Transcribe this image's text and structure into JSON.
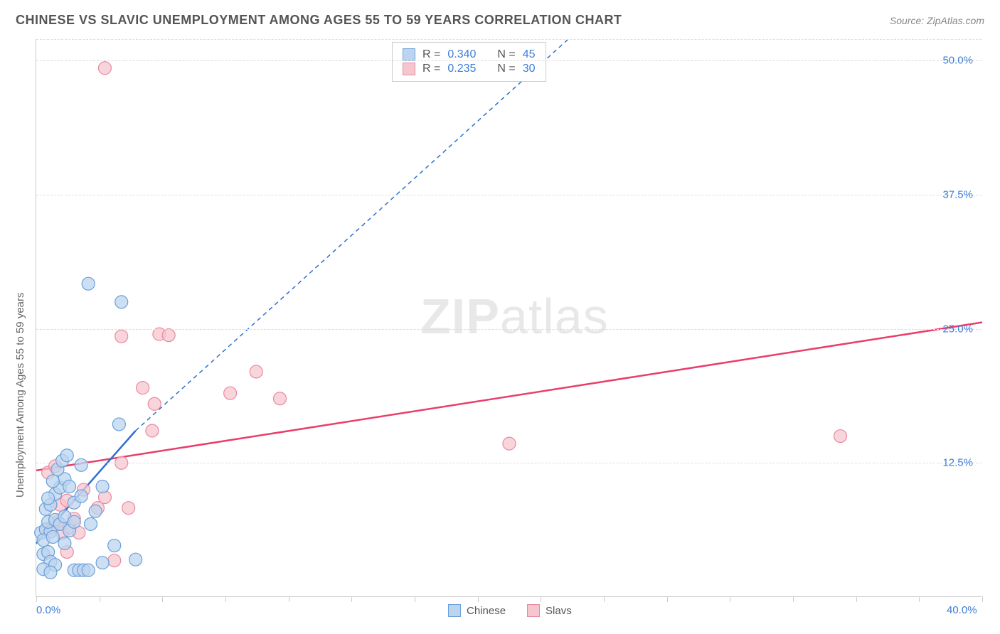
{
  "title": "CHINESE VS SLAVIC UNEMPLOYMENT AMONG AGES 55 TO 59 YEARS CORRELATION CHART",
  "source": "Source: ZipAtlas.com",
  "ylabel": "Unemployment Among Ages 55 to 59 years",
  "watermark_a": "ZIP",
  "watermark_b": "atlas",
  "chart": {
    "type": "scatter",
    "xlim": [
      0,
      40
    ],
    "ylim": [
      0,
      52
    ],
    "x_ticks": [
      0,
      2.67,
      5.33,
      8,
      10.67,
      13.33,
      16,
      18.67,
      21.33,
      24,
      26.67,
      29.33,
      32,
      34.67,
      37.33,
      40
    ],
    "x_tick_labels": {
      "0": "0.0%",
      "40": "40.0%"
    },
    "y_gridlines": [
      12.5,
      25.0,
      37.5,
      50.0,
      52.0
    ],
    "y_tick_labels": {
      "12.5": "12.5%",
      "25.0": "25.0%",
      "37.5": "37.5%",
      "50.0": "50.0%"
    },
    "grid_color": "#dddddd",
    "axis_color": "#cccccc",
    "tick_label_color": "#3b7dd8",
    "series": {
      "chinese": {
        "label": "Chinese",
        "fill": "#bcd4ee",
        "stroke": "#6aa0db",
        "marker_radius": 9,
        "fill_opacity": 0.75,
        "trend": {
          "x1": 0.0,
          "y1": 5.0,
          "x2": 4.2,
          "y2": 15.5,
          "x2_ext": 22.5,
          "y2_ext": 52.0,
          "color": "#2f6fd0",
          "width": 2.5,
          "dash": "6,5"
        },
        "points": [
          [
            0.2,
            6.0
          ],
          [
            0.4,
            6.3
          ],
          [
            0.6,
            6.1
          ],
          [
            0.5,
            7.0
          ],
          [
            0.8,
            7.2
          ],
          [
            0.3,
            5.3
          ],
          [
            0.7,
            5.6
          ],
          [
            1.0,
            6.8
          ],
          [
            1.2,
            7.5
          ],
          [
            0.4,
            8.2
          ],
          [
            0.6,
            8.6
          ],
          [
            0.8,
            9.6
          ],
          [
            1.0,
            10.2
          ],
          [
            1.2,
            11.0
          ],
          [
            1.4,
            10.3
          ],
          [
            0.9,
            11.9
          ],
          [
            1.1,
            12.7
          ],
          [
            1.3,
            13.2
          ],
          [
            0.3,
            4.0
          ],
          [
            0.5,
            4.2
          ],
          [
            0.6,
            3.3
          ],
          [
            0.8,
            3.0
          ],
          [
            1.6,
            2.5
          ],
          [
            1.8,
            2.5
          ],
          [
            2.0,
            2.5
          ],
          [
            2.2,
            2.5
          ],
          [
            2.8,
            3.2
          ],
          [
            3.3,
            4.8
          ],
          [
            4.2,
            3.5
          ],
          [
            1.6,
            8.8
          ],
          [
            1.9,
            9.4
          ],
          [
            2.3,
            6.8
          ],
          [
            2.5,
            8.0
          ],
          [
            2.8,
            10.3
          ],
          [
            3.5,
            16.1
          ],
          [
            0.3,
            2.6
          ],
          [
            0.6,
            2.3
          ],
          [
            1.2,
            5.0
          ],
          [
            1.4,
            6.2
          ],
          [
            1.6,
            7.0
          ],
          [
            2.2,
            29.2
          ],
          [
            3.6,
            27.5
          ],
          [
            0.7,
            10.8
          ],
          [
            1.9,
            12.3
          ],
          [
            0.5,
            9.2
          ]
        ]
      },
      "slavs": {
        "label": "Slavs",
        "fill": "#f6c6cf",
        "stroke": "#e88aa0",
        "marker_radius": 9,
        "fill_opacity": 0.75,
        "trend": {
          "x1": 0.0,
          "y1": 11.8,
          "x2": 40.0,
          "y2": 25.6,
          "color": "#e83e6b",
          "width": 2.5,
          "dash": "none"
        },
        "points": [
          [
            0.4,
            6.3
          ],
          [
            0.7,
            6.5
          ],
          [
            0.9,
            7.0
          ],
          [
            1.1,
            6.0
          ],
          [
            1.4,
            6.5
          ],
          [
            1.6,
            7.3
          ],
          [
            1.0,
            8.6
          ],
          [
            1.3,
            9.0
          ],
          [
            0.5,
            11.6
          ],
          [
            2.0,
            10.0
          ],
          [
            2.6,
            8.3
          ],
          [
            2.9,
            9.3
          ],
          [
            3.6,
            12.5
          ],
          [
            3.9,
            8.3
          ],
          [
            1.3,
            4.2
          ],
          [
            3.3,
            3.4
          ],
          [
            4.9,
            15.5
          ],
          [
            5.0,
            18.0
          ],
          [
            4.5,
            19.5
          ],
          [
            3.6,
            24.3
          ],
          [
            5.2,
            24.5
          ],
          [
            5.6,
            24.4
          ],
          [
            8.2,
            19.0
          ],
          [
            9.3,
            21.0
          ],
          [
            10.3,
            18.5
          ],
          [
            2.9,
            49.3
          ],
          [
            20.0,
            14.3
          ],
          [
            34.0,
            15.0
          ],
          [
            1.8,
            6.0
          ],
          [
            0.8,
            12.2
          ]
        ]
      }
    },
    "corr_box": {
      "rows": [
        {
          "swatch_fill": "#bcd4ee",
          "swatch_stroke": "#6aa0db",
          "r": "0.340",
          "n": "45"
        },
        {
          "swatch_fill": "#f6c6cf",
          "swatch_stroke": "#e88aa0",
          "r": "0.235",
          "n": "30"
        }
      ],
      "r_label": "R =",
      "n_label": "N ="
    },
    "legend": [
      {
        "swatch_fill": "#bcd4ee",
        "swatch_stroke": "#6aa0db",
        "label": "Chinese"
      },
      {
        "swatch_fill": "#f6c6cf",
        "swatch_stroke": "#e88aa0",
        "label": "Slavs"
      }
    ]
  }
}
